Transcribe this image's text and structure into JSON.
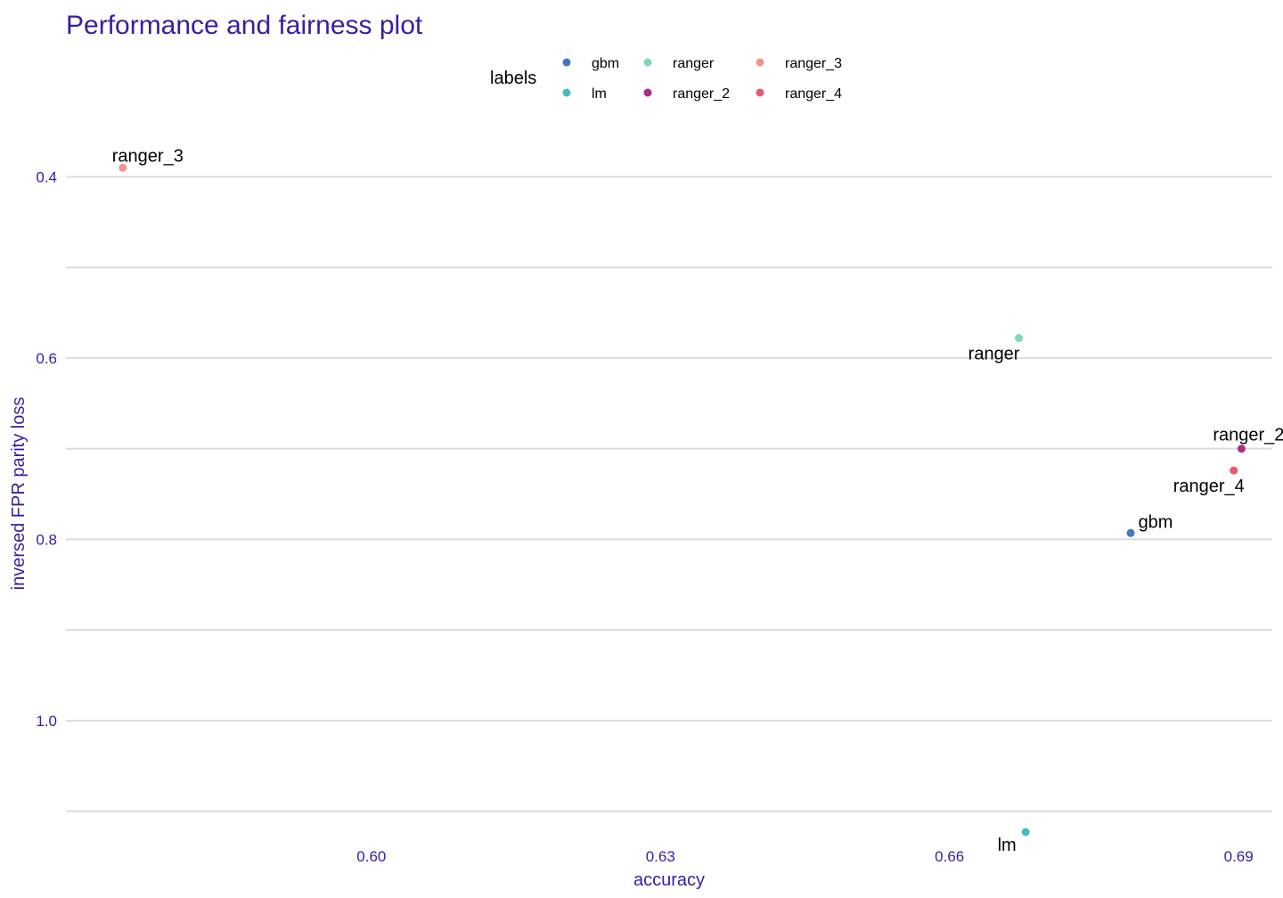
{
  "chart_data": {
    "type": "scatter",
    "title": "Performance and fairness plot",
    "xlabel": "accuracy",
    "ylabel": "inversed FPR parity loss",
    "xlim": [
      0.5683,
      0.6935
    ],
    "ylim": [
      0.3327,
      1.1112
    ],
    "y_reversed": true,
    "x_ticks": [
      0.6,
      0.63,
      0.66,
      0.69
    ],
    "x_tick_labels": [
      "0.60",
      "0.63",
      "0.66",
      "0.69"
    ],
    "y_ticks": [
      0.4,
      0.6,
      0.8,
      1.0
    ],
    "y_tick_labels": [
      "0.4",
      "0.6",
      "0.8",
      "1.0"
    ],
    "y_minor_grid": [
      0.5,
      0.7,
      0.9,
      1.1
    ],
    "grid": "horizontal",
    "legend": {
      "title": "labels",
      "position": "top",
      "entries": [
        {
          "label": "gbm",
          "color": "#4378bf"
        },
        {
          "label": "lm",
          "color": "#46bac2"
        },
        {
          "label": "ranger",
          "color": "#7fd8bd"
        },
        {
          "label": "ranger_2",
          "color": "#ae2c87"
        },
        {
          "label": "ranger_3",
          "color": "#f3958b"
        },
        {
          "label": "ranger_4",
          "color": "#e75a6a"
        }
      ]
    },
    "points": [
      {
        "label": "ranger_3",
        "x": 0.5742,
        "y": 0.39,
        "color": "#f3958b",
        "label_position": "above-right"
      },
      {
        "label": "ranger",
        "x": 0.6672,
        "y": 0.578,
        "color": "#7fd8bd",
        "label_position": "below-left"
      },
      {
        "label": "ranger_2",
        "x": 0.6903,
        "y": 0.7,
        "color": "#ae2c87",
        "label_position": "above"
      },
      {
        "label": "ranger_4",
        "x": 0.6895,
        "y": 0.724,
        "color": "#e75a6a",
        "label_position": "below-left"
      },
      {
        "label": "gbm",
        "x": 0.6788,
        "y": 0.793,
        "color": "#4378bf",
        "label_position": "above-right"
      },
      {
        "label": "lm",
        "x": 0.6679,
        "y": 1.123,
        "color": "#46bac2",
        "label_position": "below-left"
      }
    ]
  }
}
